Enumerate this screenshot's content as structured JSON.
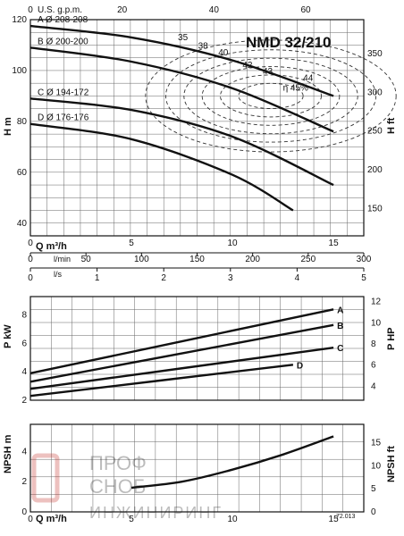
{
  "chart_data": [
    {
      "type": "line",
      "title": "NMD 32/210",
      "top_axis": {
        "label": "U.S. g.p.m.",
        "ticks": [
          "0",
          "20",
          "40",
          "60"
        ]
      },
      "ylabel": "H m",
      "ylabel_right": "H ft",
      "y_ticks": [
        "40",
        "60",
        "80",
        "100",
        "120"
      ],
      "y_right_ticks": [
        "150",
        "200",
        "250",
        "300",
        "350"
      ],
      "xlabel": "Q m³/h",
      "x_ticks": [
        "0",
        "5",
        "10",
        "15"
      ],
      "xlim": [
        0,
        16.5
      ],
      "ylim": [
        35,
        120
      ],
      "series": [
        {
          "name": "A",
          "label": "A Ø 208-208",
          "x": [
            0,
            5,
            10,
            15
          ],
          "values": [
            117.5,
            113,
            104,
            90
          ]
        },
        {
          "name": "B",
          "label": "B Ø 200-200",
          "x": [
            0,
            5,
            10,
            15
          ],
          "values": [
            109,
            103.5,
            93,
            76
          ]
        },
        {
          "name": "C",
          "label": "C Ø 194-172",
          "x": [
            0,
            5,
            10,
            15
          ],
          "values": [
            89,
            84.5,
            74,
            55
          ]
        },
        {
          "name": "D",
          "label": "D Ø 176-176",
          "x": [
            0,
            5,
            10,
            13
          ],
          "values": [
            79,
            73,
            59,
            45
          ]
        }
      ],
      "efficiency_labels": [
        "35",
        "38",
        "40",
        "42",
        "43",
        "44",
        "η 45%"
      ],
      "secondary_axes": [
        {
          "label": "l/min",
          "ticks": [
            "0",
            "50",
            "100",
            "150",
            "200",
            "250",
            "300"
          ]
        },
        {
          "label": "l/s",
          "ticks": [
            "0",
            "1",
            "2",
            "3",
            "4",
            "5"
          ]
        }
      ]
    },
    {
      "type": "line",
      "ylabel": "P kW",
      "ylabel_right": "P HP",
      "y_ticks": [
        "2",
        "4",
        "6",
        "8"
      ],
      "y_right_ticks": [
        "4",
        "6",
        "8",
        "10",
        "12"
      ],
      "xlim": [
        0,
        16.5
      ],
      "ylim": [
        2,
        9.3
      ],
      "series": [
        {
          "name": "A",
          "x": [
            0,
            15
          ],
          "values": [
            3.9,
            8.4
          ]
        },
        {
          "name": "B",
          "x": [
            0,
            15
          ],
          "values": [
            3.3,
            7.3
          ]
        },
        {
          "name": "C",
          "x": [
            0,
            15
          ],
          "values": [
            2.8,
            5.7
          ]
        },
        {
          "name": "D",
          "x": [
            0,
            13
          ],
          "values": [
            2.3,
            4.5
          ]
        }
      ]
    },
    {
      "type": "line",
      "ylabel": "NPSH m",
      "ylabel_right": "NPSH ft",
      "y_ticks": [
        "0",
        "2",
        "4"
      ],
      "y_right_ticks": [
        "0",
        "5",
        "10",
        "15"
      ],
      "xlabel": "Q m³/h",
      "x_ticks": [
        "0",
        "5",
        "10",
        "15"
      ],
      "xlim": [
        0,
        16.5
      ],
      "ylim": [
        0,
        5.8
      ],
      "series": [
        {
          "name": "NPSH",
          "x": [
            5,
            7.5,
            10,
            12.5,
            15
          ],
          "values": [
            1.6,
            2.0,
            2.8,
            3.8,
            5.0
          ]
        }
      ]
    }
  ],
  "footer": {
    "code": "72.013"
  },
  "watermark": {
    "line1": "ПРОФ",
    "line2": "СНОБ",
    "line3": "ИНЖИНИРИНГ"
  }
}
